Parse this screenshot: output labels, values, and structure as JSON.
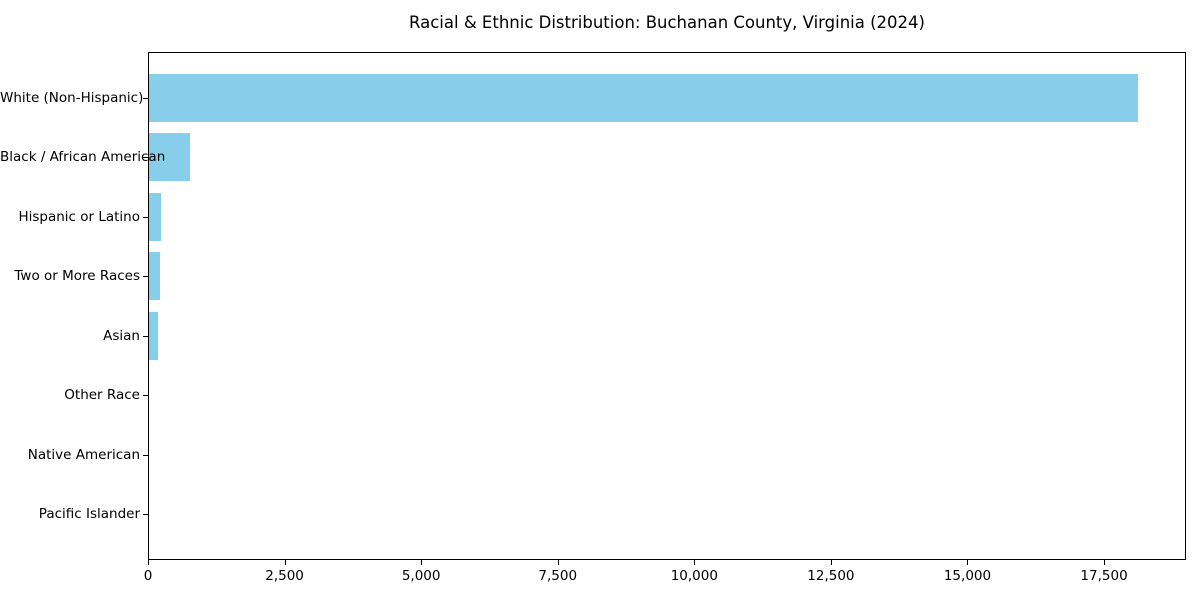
{
  "chart_data": {
    "type": "bar",
    "orientation": "horizontal",
    "title": "Racial & Ethnic Distribution: Buchanan County, Virginia (2024)",
    "categories": [
      "White (Non-Hispanic)",
      "Black / African American",
      "Hispanic or Latino",
      "Two or More Races",
      "Asian",
      "Other Race",
      "Native American",
      "Pacific Islander"
    ],
    "values": [
      18100,
      750,
      225,
      205,
      170,
      0,
      0,
      0
    ],
    "xlabel": "",
    "ylabel": "",
    "xlim": [
      0,
      19000
    ],
    "xticks": [
      0,
      2500,
      5000,
      7500,
      10000,
      12500,
      15000,
      17500
    ],
    "xtick_labels": [
      "0",
      "2,500",
      "5,000",
      "7,500",
      "10,000",
      "12,500",
      "15,000",
      "17,500"
    ],
    "bar_color": "#87CEEB",
    "text_color": "#000000",
    "grid": false,
    "legend": null
  }
}
